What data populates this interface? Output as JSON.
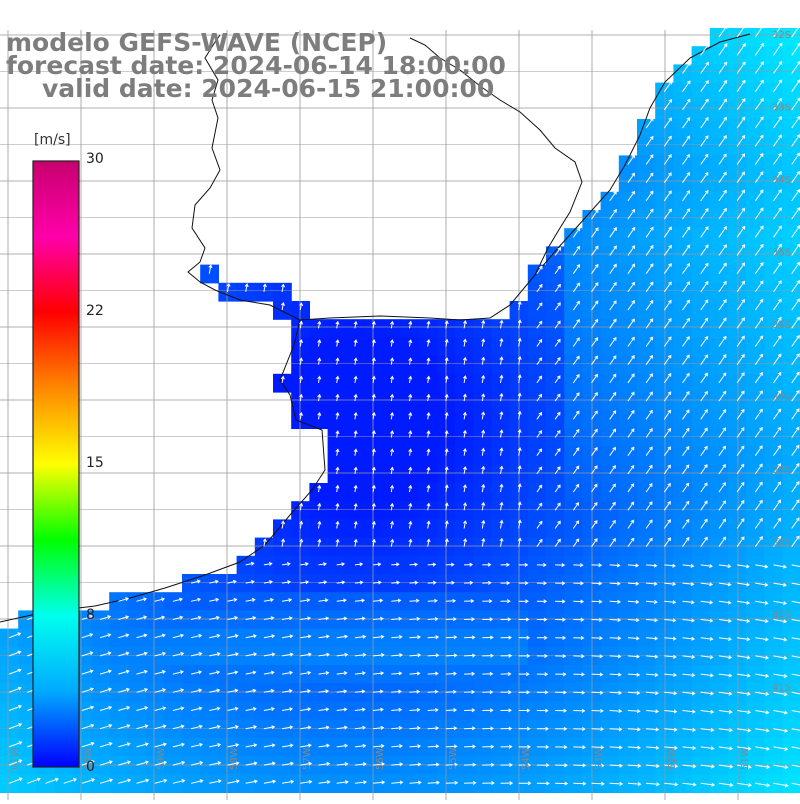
{
  "title": {
    "line1": "modelo GEFS-WAVE (NCEP)",
    "line2": "forecast date: 2024-06-14 18:00:00",
    "line3": "valid date: 2024-06-15 21:00:00"
  },
  "colorbar": {
    "units": "[m/s]",
    "ticks": [
      "30",
      "22",
      "15",
      "8",
      "0"
    ],
    "range": [
      0,
      30
    ],
    "gradient": [
      "#0000ff",
      "#00aaff",
      "#00ffee",
      "#00ff00",
      "#ffff00",
      "#ff8800",
      "#ff0000",
      "#ff00aa",
      "#c8006e"
    ]
  },
  "map": {
    "land_color": "#ffffff",
    "grid_color": "#999999",
    "vector_color": "#ffffff",
    "lat_labels": [
      "32S",
      "33S",
      "34S",
      "35S",
      "36S",
      "37S",
      "38S",
      "39S",
      "40S",
      "41S"
    ],
    "lon_labels": [
      "61W",
      "60W",
      "59W",
      "58W",
      "57W",
      "56W",
      "55W",
      "54W",
      "53W",
      "52W",
      "51W"
    ]
  }
}
